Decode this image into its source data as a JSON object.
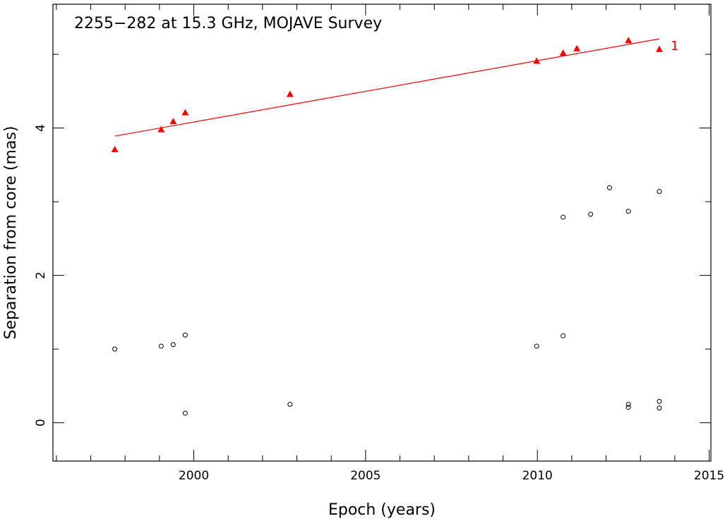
{
  "chart_data": {
    "type": "scatter",
    "title": "2255−282 at 15.3 GHz, MOJAVE Survey",
    "xlabel": "Epoch (years)",
    "ylabel": "Separation from core (mas)",
    "xlim": [
      1995.9,
      2015.05
    ],
    "ylim": [
      -0.52,
      5.68
    ],
    "x_ticks": [
      2000,
      2005,
      2010,
      2015
    ],
    "x_tick_labels": [
      "2000",
      "2005",
      "2010",
      "2015"
    ],
    "y_ticks": [
      0,
      2,
      4
    ],
    "y_tick_labels": [
      "0",
      "2",
      "4"
    ],
    "x_minor_step": 1,
    "y_minor_step": 1,
    "grid": false,
    "series": [
      {
        "name": "1",
        "marker": "filled-triangle",
        "color": "#ff0000",
        "points": [
          [
            1997.7,
            3.71
          ],
          [
            1999.05,
            3.98
          ],
          [
            1999.4,
            4.09
          ],
          [
            1999.75,
            4.21
          ],
          [
            2002.8,
            4.46
          ],
          [
            2009.98,
            4.91
          ],
          [
            2010.75,
            5.02
          ],
          [
            2011.15,
            5.08
          ],
          [
            2012.65,
            5.19
          ],
          [
            2013.55,
            5.07
          ]
        ],
        "fit": {
          "x": [
            1997.7,
            2013.55
          ],
          "y": [
            3.89,
            5.21
          ]
        },
        "label": "1"
      },
      {
        "name": "",
        "marker": "open-circle",
        "color": "#000000",
        "points": [
          [
            1997.7,
            1.0
          ],
          [
            1999.05,
            1.04
          ],
          [
            1999.4,
            1.06
          ],
          [
            1999.75,
            1.19
          ],
          [
            1999.75,
            0.13
          ],
          [
            2002.8,
            0.25
          ],
          [
            2009.98,
            1.04
          ],
          [
            2010.75,
            1.18
          ],
          [
            2010.75,
            2.79
          ],
          [
            2011.55,
            2.83
          ],
          [
            2012.1,
            3.19
          ],
          [
            2012.65,
            2.87
          ],
          [
            2012.65,
            0.25
          ],
          [
            2012.65,
            0.21
          ],
          [
            2013.55,
            3.14
          ],
          [
            2013.55,
            0.29
          ],
          [
            2013.55,
            0.2
          ]
        ]
      }
    ]
  }
}
